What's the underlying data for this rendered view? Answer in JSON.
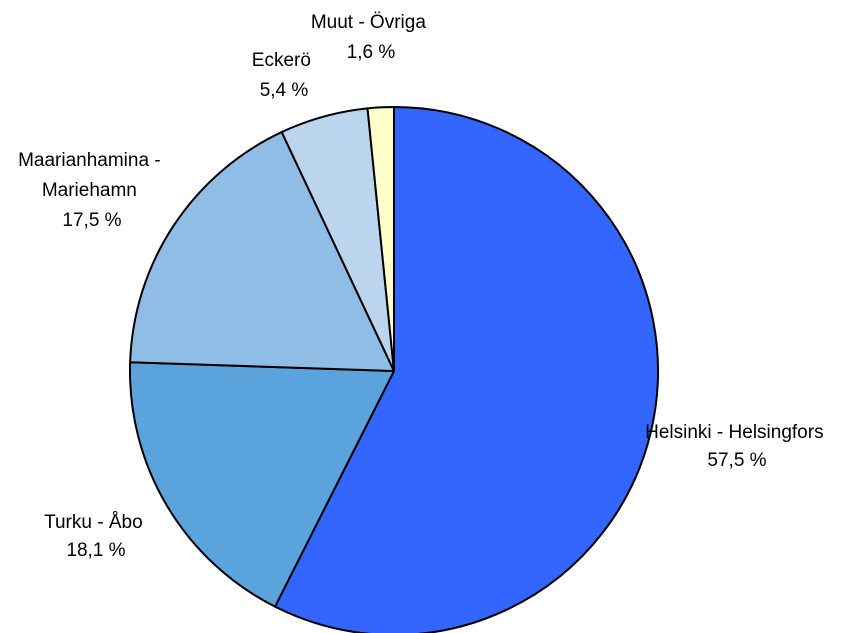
{
  "chart_data": {
    "type": "pie",
    "start": "12 o'clock",
    "direction": "clockwise",
    "slices": [
      {
        "label_lines": [
          "Helsinki - Helsingfors"
        ],
        "value": 57.5,
        "value_label": "57,5 %",
        "color": "#3366ff"
      },
      {
        "label_lines": [
          "Turku - Åbo"
        ],
        "value": 18.1,
        "value_label": "18,1 %",
        "color": "#5ba3dc"
      },
      {
        "label_lines": [
          "Maarianhamina -",
          "Mariehamn"
        ],
        "value": 17.5,
        "value_label": "17,5 %",
        "color": "#8fbde6"
      },
      {
        "label_lines": [
          "Eckerö"
        ],
        "value": 5.4,
        "value_label": "5,4 %",
        "color": "#bcd5ef"
      },
      {
        "label_lines": [
          "Muut - Övriga"
        ],
        "value": 1.6,
        "value_label": "1,6 %",
        "color": "#ffffcc"
      }
    ]
  }
}
